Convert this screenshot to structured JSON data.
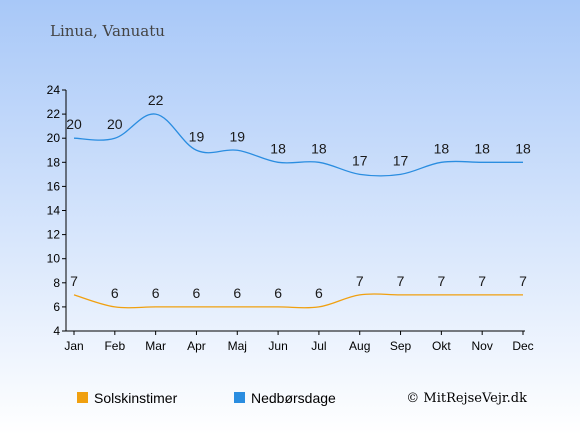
{
  "title": "Linua, Vanuatu",
  "credit": "© MitRejseVejr.dk",
  "colors": {
    "bg_top": "#a8c8f8",
    "bg_bottom": "#ffffff",
    "sun": "#f0a010",
    "rain": "#2a8de0"
  },
  "chart_data": {
    "type": "line",
    "categories": [
      "Jan",
      "Feb",
      "Mar",
      "Apr",
      "Maj",
      "Jun",
      "Jul",
      "Aug",
      "Sep",
      "Okt",
      "Nov",
      "Dec"
    ],
    "ylim": [
      4,
      24
    ],
    "yticks": [
      4,
      6,
      8,
      10,
      12,
      14,
      16,
      18,
      20,
      22,
      24
    ],
    "series": [
      {
        "name": "Solskinstimer",
        "color": "#f0a010",
        "values": [
          7,
          6,
          6,
          6,
          6,
          6,
          6,
          7,
          7,
          7,
          7,
          7
        ]
      },
      {
        "name": "Nedbørsdage",
        "color": "#2a8de0",
        "values": [
          20,
          20,
          22,
          19,
          19,
          18,
          18,
          17,
          17,
          18,
          18,
          18
        ]
      }
    ],
    "legend_position": "bottom",
    "grid": false
  }
}
